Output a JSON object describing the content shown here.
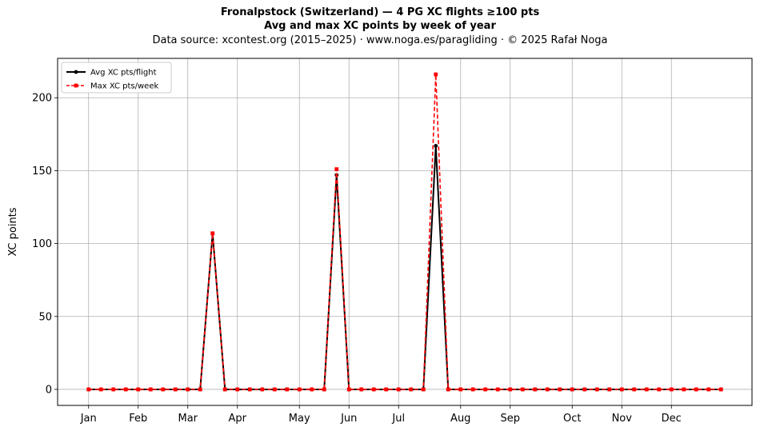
{
  "chart_data": {
    "type": "line",
    "title": "Fronalpstock (Switzerland)  —  4 PG XC flights ≥100 pts",
    "subtitle": "Avg and max XC points by week of year",
    "source_note": "Data source: xcontest.org (2015–2025)  ·  www.noga.es/paragliding  ·  © 2025 Rafał Noga",
    "xlabel": "",
    "ylabel": "XC points",
    "x_axis": "week of year",
    "xlim": [
      -1.5,
      54.5
    ],
    "ylim": [
      -11,
      227
    ],
    "y_ticks": [
      0,
      50,
      100,
      150,
      200
    ],
    "month_ticks": [
      {
        "label": "Jan",
        "week": 1
      },
      {
        "label": "Feb",
        "week": 5
      },
      {
        "label": "Mar",
        "week": 9
      },
      {
        "label": "Apr",
        "week": 13
      },
      {
        "label": "May",
        "week": 18
      },
      {
        "label": "Jun",
        "week": 22
      },
      {
        "label": "Jul",
        "week": 26
      },
      {
        "label": "Aug",
        "week": 31
      },
      {
        "label": "Sep",
        "week": 35
      },
      {
        "label": "Oct",
        "week": 40
      },
      {
        "label": "Nov",
        "week": 44
      },
      {
        "label": "Dec",
        "week": 48
      }
    ],
    "grid": true,
    "legend_position": "top-left",
    "x": [
      1,
      2,
      3,
      4,
      5,
      6,
      7,
      8,
      9,
      10,
      11,
      12,
      13,
      14,
      15,
      16,
      17,
      18,
      19,
      20,
      21,
      22,
      23,
      24,
      25,
      26,
      27,
      28,
      29,
      30,
      31,
      32,
      33,
      34,
      35,
      36,
      37,
      38,
      39,
      40,
      41,
      42,
      43,
      44,
      45,
      46,
      47,
      48,
      49,
      50,
      51,
      52
    ],
    "series": [
      {
        "name": "Avg XC pts/flight",
        "color": "#000000",
        "style": "solid",
        "marker": "circle",
        "values": [
          0,
          0,
          0,
          0,
          0,
          0,
          0,
          0,
          0,
          0,
          107,
          0,
          0,
          0,
          0,
          0,
          0,
          0,
          0,
          0,
          147,
          0,
          0,
          0,
          0,
          0,
          0,
          0,
          167,
          0,
          0,
          0,
          0,
          0,
          0,
          0,
          0,
          0,
          0,
          0,
          0,
          0,
          0,
          0,
          0,
          0,
          0,
          0,
          0,
          0,
          0,
          0
        ]
      },
      {
        "name": "Max XC pts/week",
        "color": "#ff0000",
        "style": "dashed",
        "marker": "square",
        "values": [
          0,
          0,
          0,
          0,
          0,
          0,
          0,
          0,
          0,
          0,
          107,
          0,
          0,
          0,
          0,
          0,
          0,
          0,
          0,
          0,
          151,
          0,
          0,
          0,
          0,
          0,
          0,
          0,
          216,
          0,
          0,
          0,
          0,
          0,
          0,
          0,
          0,
          0,
          0,
          0,
          0,
          0,
          0,
          0,
          0,
          0,
          0,
          0,
          0,
          0,
          0,
          0
        ]
      }
    ]
  }
}
